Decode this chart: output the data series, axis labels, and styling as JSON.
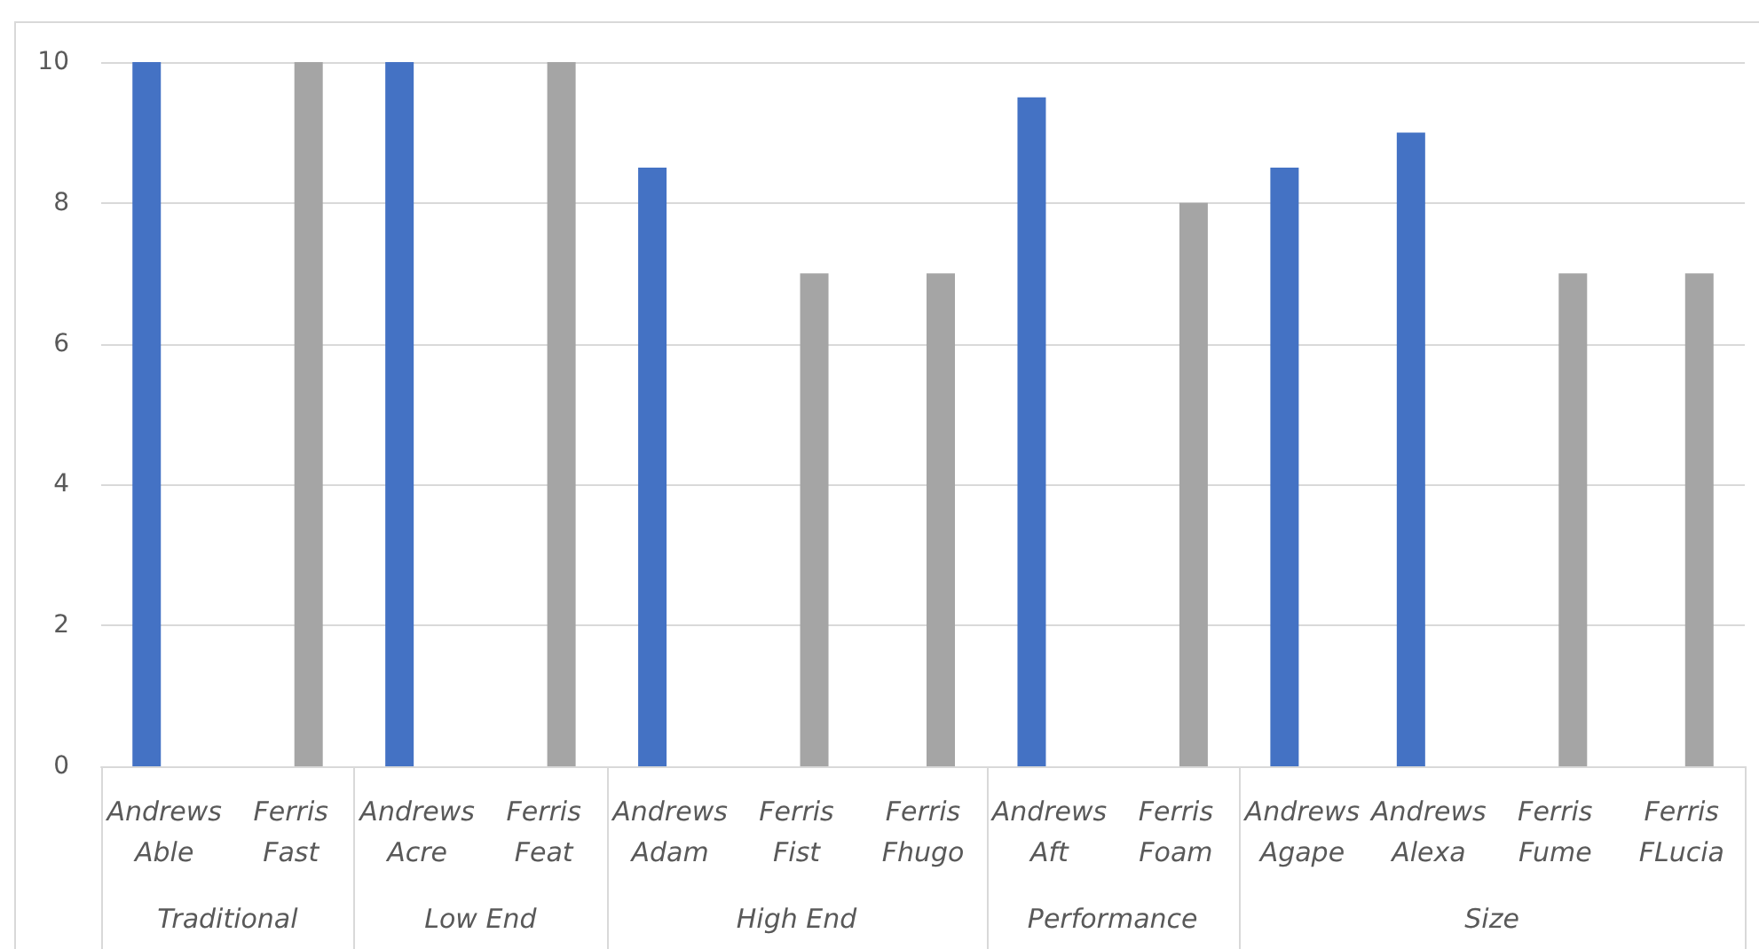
{
  "chart_data": {
    "type": "bar",
    "categories": [
      "Andrews\nAble",
      "Ferris\nFast",
      "Andrews\nAcre",
      "Ferris\nFeat",
      "Andrews\nAdam",
      "Ferris\nFist",
      "Ferris\nFhugo",
      "Andrews\nAft",
      "Ferris\nFoam",
      "Andrews\nAgape",
      "Andrews\nAlexa",
      "Ferris\nFume",
      "Ferris\nFLucia"
    ],
    "series": [
      {
        "color": "#4472c4",
        "values": [
          10,
          null,
          10,
          null,
          8.5,
          null,
          null,
          9.5,
          null,
          8.5,
          9,
          null,
          null
        ]
      },
      {
        "color": "#a5a5a5",
        "values": [
          null,
          10,
          null,
          10,
          null,
          7,
          7,
          null,
          8,
          null,
          null,
          7,
          7
        ]
      }
    ],
    "ylim": [
      0,
      10
    ],
    "yticks": [
      0,
      2,
      4,
      6,
      8,
      10
    ],
    "grid": "y",
    "annotations": [
      "Traditional",
      "Low End",
      "High End",
      "Performance",
      "Size"
    ]
  }
}
